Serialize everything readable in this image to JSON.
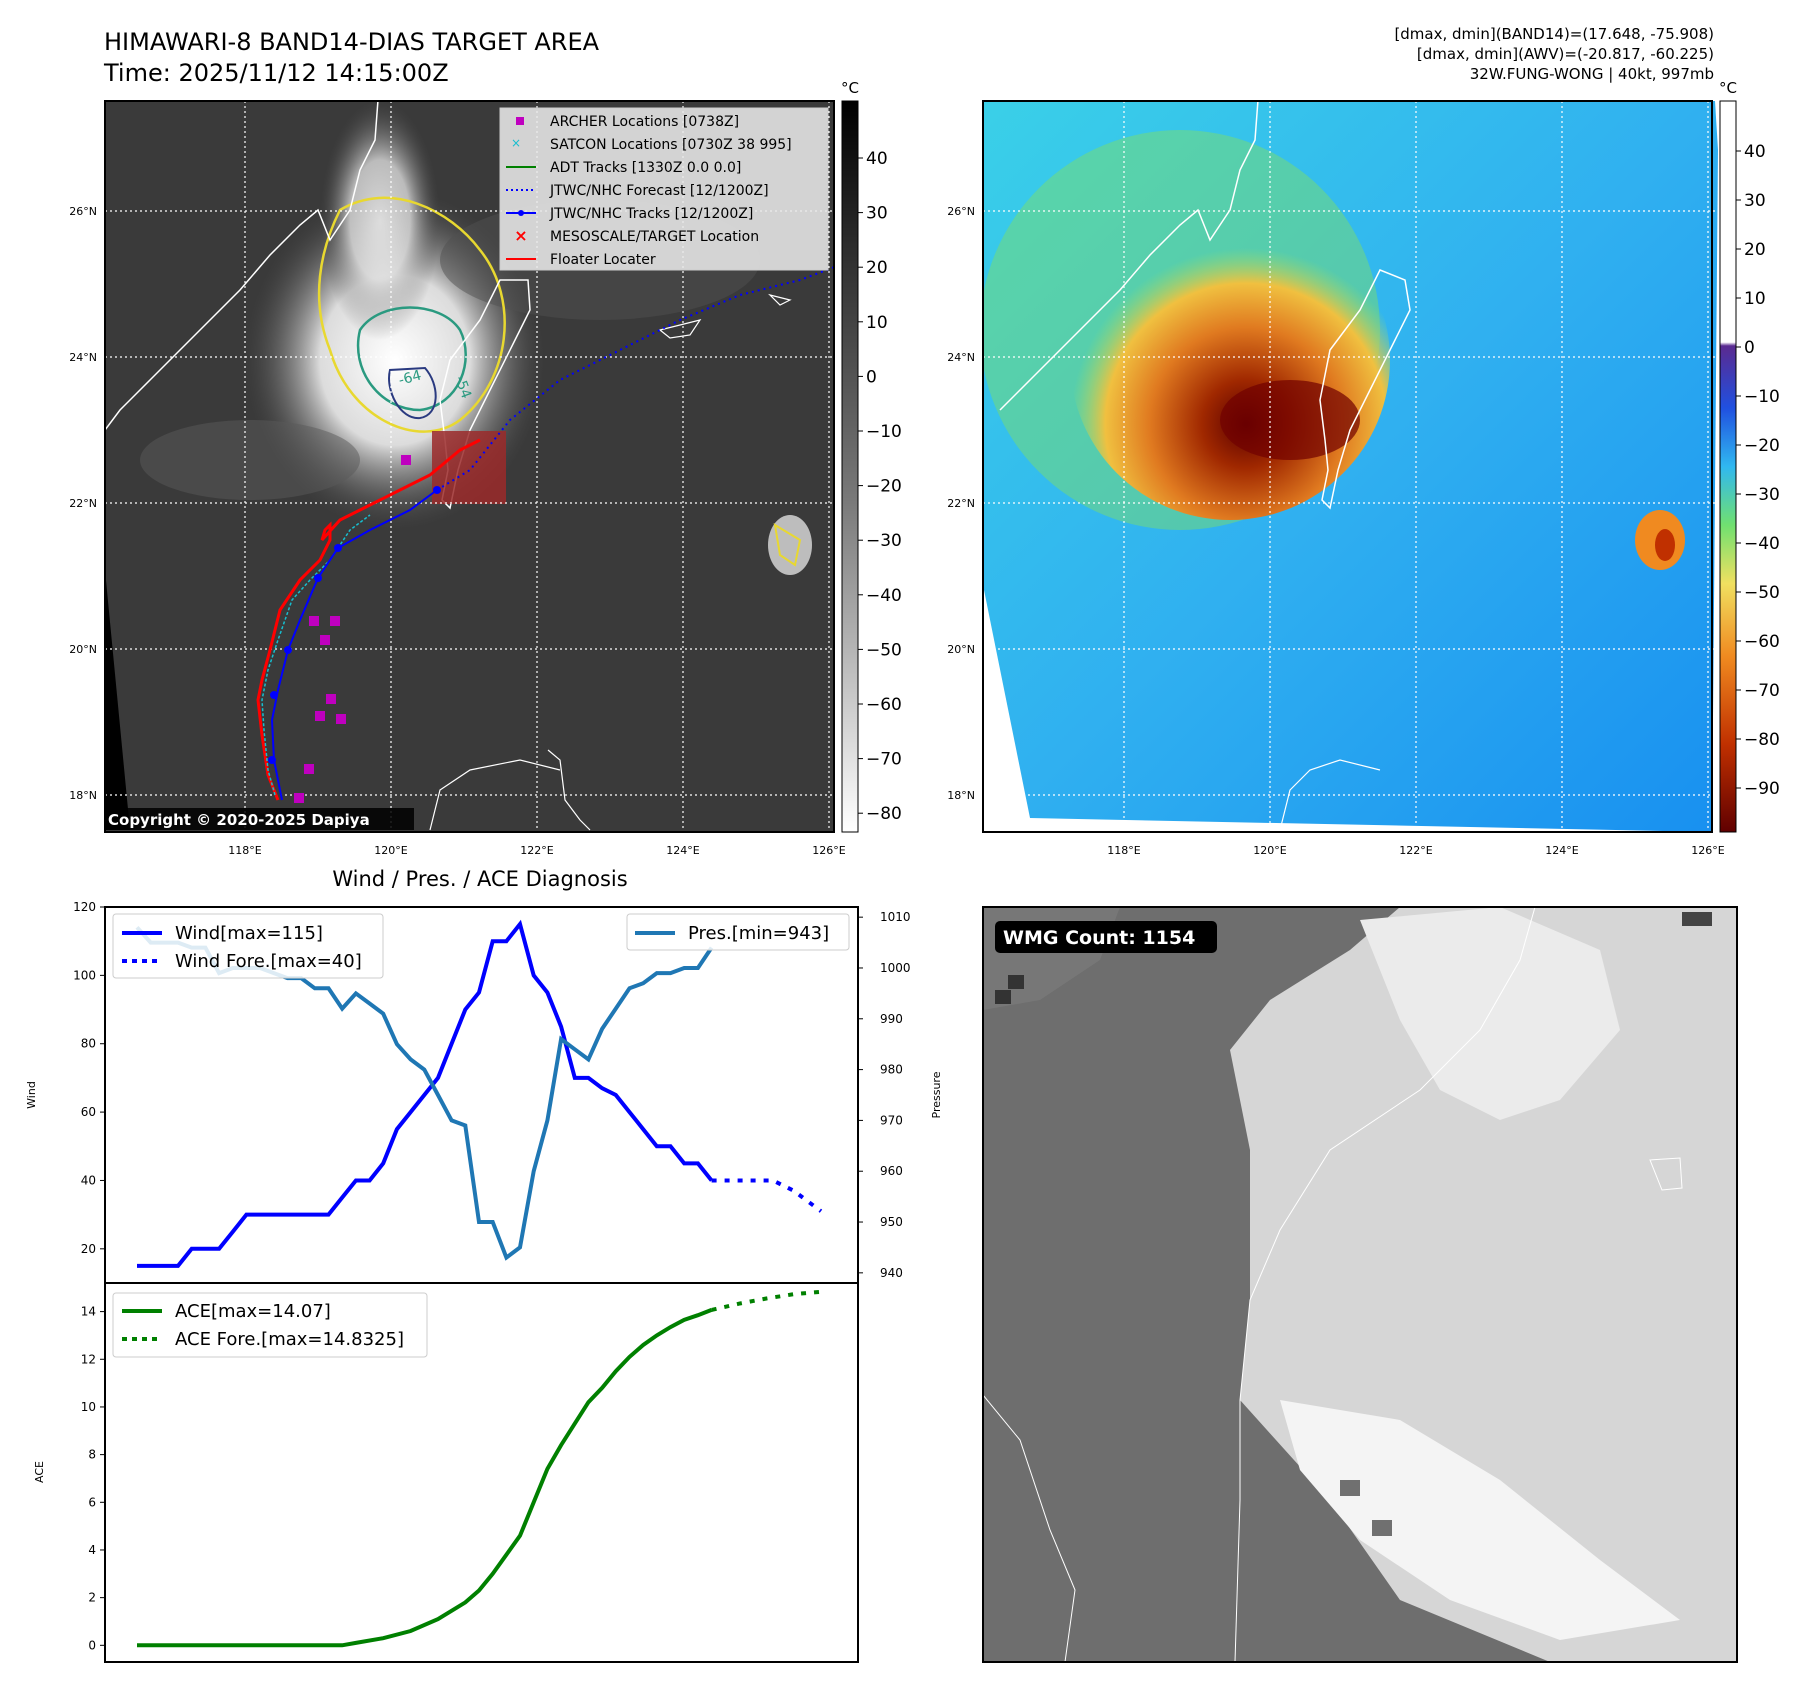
{
  "header": {
    "title": "HIMAWARI-8 BAND14-DIAS TARGET AREA",
    "time": "Time: 2025/11/12 14:15:00Z",
    "info_line1": "[dmax, dmin](BAND14)=(17.648, -75.908)",
    "info_line2": "[dmax, dmin](AWV)=(-20.817, -60.225)",
    "info_line3": "32W.FUNG-WONG | 40kt, 997mb"
  },
  "colors": {
    "wind": "#0000ff",
    "pressure": "#1f77b4",
    "ace": "#008000",
    "archer": "#bf00bf",
    "satcon": "#17becf",
    "adt": "#008000",
    "jtwc": "#0000ff",
    "target": "#ff0000",
    "floater": "#ff0000"
  },
  "map_panels": {
    "lon_ticks": [
      "118°E",
      "120°E",
      "122°E",
      "124°E",
      "126°E"
    ],
    "lat_ticks": [
      "26°N",
      "24°N",
      "22°N",
      "20°N",
      "18°N"
    ],
    "copyright": "Copyright © 2020-2025 Dapiya",
    "legend": [
      {
        "label": "ARCHER Locations [0738Z]",
        "marker": "square",
        "color": "#bf00bf"
      },
      {
        "label": "SATCON Locations [0730Z 38 995]",
        "marker": "x",
        "color": "#17becf"
      },
      {
        "label": "ADT Tracks [1330Z 0.0 0.0]",
        "marker": "line",
        "color": "#008000"
      },
      {
        "label": "JTWC/NHC Forecast [12/1200Z]",
        "marker": "dotted",
        "color": "#0000ff"
      },
      {
        "label": "JTWC/NHC Tracks [12/1200Z]",
        "marker": "line-dot",
        "color": "#0000ff"
      },
      {
        "label": "MESOSCALE/TARGET Location",
        "marker": "x",
        "color": "#ff0000"
      },
      {
        "label": "Floater Locater",
        "marker": "line",
        "color": "#ff0000"
      }
    ],
    "contour_labels": [
      "-64",
      "-54"
    ],
    "colorbar_unit": "°C",
    "gray_colorbar_ticks": [
      "40",
      "30",
      "20",
      "10",
      "0",
      "−10",
      "−20",
      "−30",
      "−40",
      "−50",
      "−60",
      "−70",
      "−80"
    ],
    "color_colorbar_ticks": [
      "40",
      "30",
      "20",
      "10",
      "0",
      "−10",
      "−20",
      "−30",
      "−40",
      "−50",
      "−60",
      "−70",
      "−80",
      "−90"
    ],
    "wmg_label": "WMG Count: 1154"
  },
  "chart_data": [
    {
      "type": "line",
      "title": "Wind / Pres. / ACE Diagnosis",
      "ylabel": "Wind",
      "ylabel_right": "Pressure",
      "ylim": [
        10,
        120
      ],
      "ylim_right": [
        938,
        1012
      ],
      "y_ticks": [
        "120",
        "100",
        "80",
        "60",
        "40",
        "20"
      ],
      "y_ticks_right": [
        "1010",
        "1000",
        "990",
        "980",
        "970",
        "960",
        "950",
        "940"
      ],
      "legend_left": [
        "Wind[max=115]",
        "Wind Fore.[max=40]"
      ],
      "legend_right": [
        "Pres.[min=943]"
      ],
      "series": [
        {
          "name": "Wind[max=115]",
          "axis": "left",
          "style": "solid",
          "x": [
            0,
            1,
            2,
            3,
            4,
            5,
            6,
            7,
            8,
            9,
            10,
            11,
            12,
            13,
            14,
            15,
            16,
            17,
            18,
            19,
            20,
            21,
            22,
            23,
            24,
            25,
            26,
            27,
            28,
            29,
            30,
            31,
            32,
            33,
            34,
            35,
            36,
            37,
            38,
            39,
            40,
            41,
            42
          ],
          "values": [
            15,
            15,
            15,
            15,
            20,
            20,
            20,
            25,
            30,
            30,
            30,
            30,
            30,
            30,
            30,
            35,
            40,
            40,
            45,
            55,
            60,
            65,
            70,
            80,
            90,
            95,
            110,
            110,
            115,
            100,
            95,
            85,
            70,
            70,
            67,
            65,
            60,
            55,
            50,
            50,
            45,
            45,
            40
          ]
        },
        {
          "name": "Wind Fore.[max=40]",
          "axis": "left",
          "style": "dotted",
          "x": [
            42,
            46,
            46.5,
            48,
            50
          ],
          "values": [
            40,
            40,
            40,
            37,
            31
          ]
        },
        {
          "name": "Pres.[min=943]",
          "axis": "right",
          "style": "solid",
          "x": [
            0,
            1,
            2,
            3,
            4,
            5,
            6,
            7,
            8,
            9,
            10,
            11,
            12,
            13,
            14,
            15,
            16,
            17,
            18,
            19,
            20,
            21,
            22,
            23,
            24,
            25,
            26,
            27,
            28,
            29,
            30,
            31,
            32,
            33,
            34,
            35,
            36,
            37,
            38,
            39,
            40,
            41,
            42
          ],
          "values": [
            1008,
            1005,
            1005,
            1005,
            1004,
            1004,
            999,
            1000,
            1000,
            1000,
            999,
            998,
            998,
            996,
            996,
            992,
            995,
            993,
            991,
            985,
            982,
            980,
            975,
            970,
            969,
            950,
            950,
            943,
            945,
            960,
            970,
            986,
            984,
            982,
            988,
            992,
            996,
            997,
            999,
            999,
            1000,
            1000,
            1004
          ]
        }
      ]
    },
    {
      "type": "line",
      "ylabel": "ACE",
      "ylim": [
        -0.7,
        15.2
      ],
      "y_ticks": [
        "14",
        "12",
        "10",
        "8",
        "6",
        "4",
        "2",
        "0"
      ],
      "legend": [
        "ACE[max=14.07]",
        "ACE Fore.[max=14.8325]"
      ],
      "series": [
        {
          "name": "ACE[max=14.07]",
          "style": "solid",
          "x": [
            0,
            4,
            8,
            12,
            15,
            16,
            18,
            20,
            22,
            24,
            25,
            26,
            28,
            29,
            30,
            31,
            32,
            33,
            34,
            35,
            36,
            37,
            38,
            39,
            40,
            41,
            42
          ],
          "values": [
            0,
            0,
            0,
            0,
            0,
            0.1,
            0.3,
            0.6,
            1.1,
            1.8,
            2.3,
            3.0,
            4.6,
            6.0,
            7.4,
            8.4,
            9.3,
            10.2,
            10.8,
            11.5,
            12.1,
            12.6,
            13.0,
            13.35,
            13.65,
            13.85,
            14.07
          ]
        },
        {
          "name": "ACE Fore.[max=14.8325]",
          "style": "dotted",
          "x": [
            42,
            44,
            46,
            48,
            50
          ],
          "values": [
            14.07,
            14.33,
            14.55,
            14.73,
            14.83
          ]
        }
      ]
    }
  ]
}
